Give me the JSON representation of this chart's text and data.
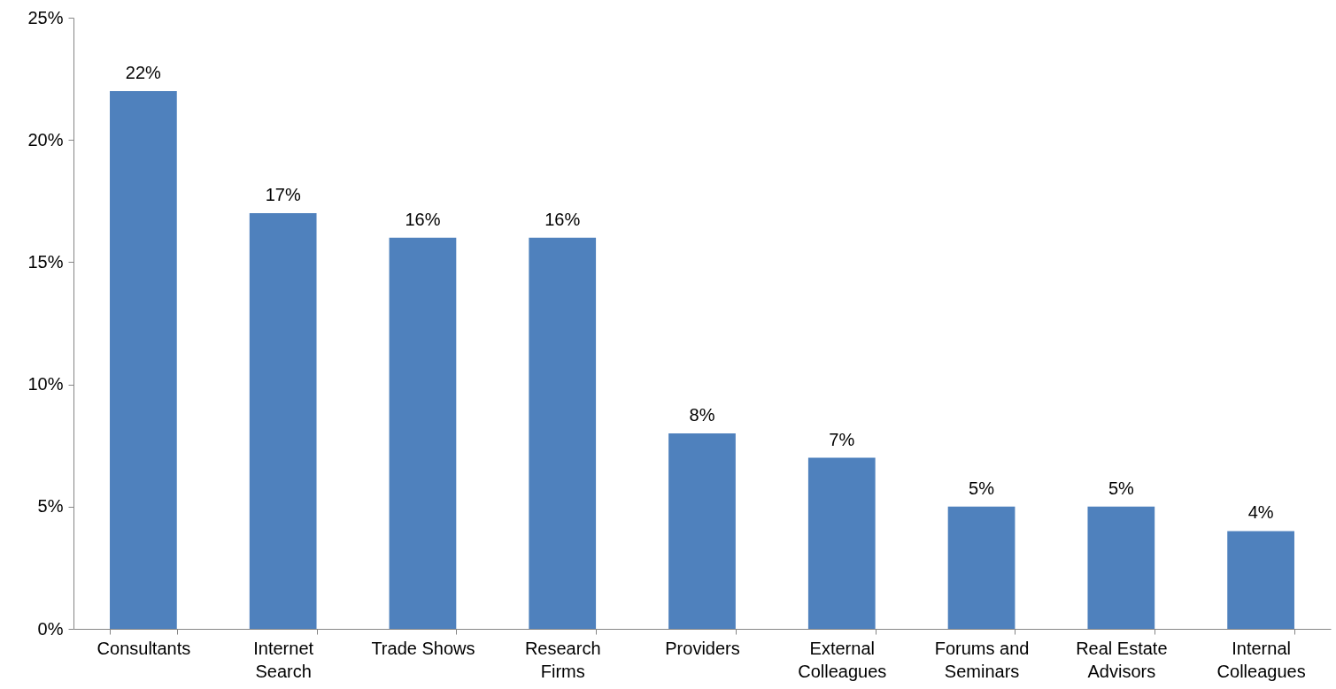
{
  "chart_data": {
    "type": "bar",
    "categories": [
      "Consultants",
      "Internet Search",
      "Trade Shows",
      "Research Firms",
      "Providers",
      "External Colleagues",
      "Forums and Seminars",
      "Real Estate Advisors",
      "Internal Colleagues"
    ],
    "values": [
      22,
      17,
      16,
      16,
      8,
      7,
      5,
      5,
      4
    ],
    "value_labels": [
      "22%",
      "17%",
      "16%",
      "16%",
      "8%",
      "7%",
      "5%",
      "5%",
      "4%"
    ],
    "color": "#4f81bd",
    "ylim": [
      0,
      25
    ],
    "yticks": [
      {
        "value": 0,
        "label": "0%"
      },
      {
        "value": 5,
        "label": "5%"
      },
      {
        "value": 10,
        "label": "10%"
      },
      {
        "value": 15,
        "label": "15%"
      },
      {
        "value": 20,
        "label": "20%"
      },
      {
        "value": 25,
        "label": "25%"
      }
    ],
    "grid": false
  }
}
